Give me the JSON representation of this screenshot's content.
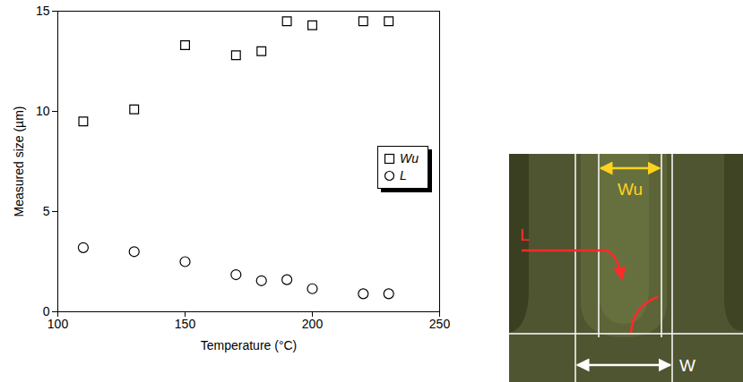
{
  "chart_data": {
    "type": "scatter",
    "x_label": "Temperature (°C)",
    "y_label": "Measured size (µm)",
    "x": [
      110,
      130,
      150,
      170,
      180,
      190,
      200,
      220,
      230
    ],
    "series": [
      {
        "name": "Wu",
        "marker": "square",
        "color": "#000000",
        "values": [
          9.5,
          10.1,
          13.3,
          12.8,
          13.0,
          14.5,
          14.3,
          14.5,
          14.5
        ]
      },
      {
        "name": "L",
        "marker": "circle",
        "color": "#000000",
        "values": [
          3.2,
          3.0,
          2.5,
          1.85,
          1.55,
          1.6,
          1.15,
          0.9,
          0.9
        ]
      }
    ],
    "xlim": [
      100,
      250
    ],
    "xticks": [
      100,
      150,
      200,
      250
    ],
    "ylim": [
      0,
      15
    ],
    "yticks": [
      0,
      5,
      10,
      15
    ],
    "grid": false,
    "legend": "right"
  },
  "image": {
    "labels": [
      {
        "text": "Wu",
        "color": "#ffd21f"
      },
      {
        "text": "L",
        "color": "#ff2a2a"
      },
      {
        "text": "W",
        "color": "#ffffff"
      }
    ]
  }
}
